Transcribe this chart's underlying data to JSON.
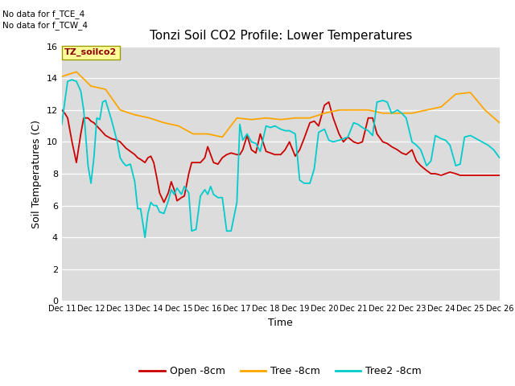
{
  "title": "Tonzi Soil CO2 Profile: Lower Temperatures",
  "ylabel": "Soil Temperatures (C)",
  "xlabel": "Time",
  "top_left_text": "No data for f_TCE_4\nNo data for f_TCW_4",
  "box_label": "TZ_soilco2",
  "ylim": [
    0,
    16
  ],
  "yticks": [
    0,
    2,
    4,
    6,
    8,
    10,
    12,
    14,
    16
  ],
  "xtick_labels": [
    "Dec 11",
    "Dec 12",
    "Dec 13",
    "Dec 14",
    "Dec 15",
    "Dec 16",
    "Dec 17",
    "Dec 18",
    "Dec 19",
    "Dec 20",
    "Dec 21",
    "Dec 22",
    "Dec 23",
    "Dec 24",
    "Dec 25",
    "Dec 26"
  ],
  "bg_color": "#dcdcdc",
  "legend_entries": [
    "Open -8cm",
    "Tree -8cm",
    "Tree2 -8cm"
  ],
  "legend_colors": [
    "#cc0000",
    "#ffa500",
    "#00cccc"
  ],
  "open_8cm_x": [
    0,
    0.1,
    0.2,
    0.35,
    0.5,
    0.65,
    0.75,
    0.9,
    1.0,
    1.1,
    1.2,
    1.3,
    1.4,
    1.5,
    1.7,
    1.9,
    2.0,
    2.1,
    2.2,
    2.35,
    2.5,
    2.6,
    2.7,
    2.85,
    2.95,
    3.05,
    3.15,
    3.25,
    3.35,
    3.5,
    3.65,
    3.75,
    3.85,
    3.95,
    4.1,
    4.2,
    4.35,
    4.45,
    4.6,
    4.75,
    4.9,
    5.0,
    5.1,
    5.2,
    5.35,
    5.5,
    5.65,
    5.8,
    6.0,
    6.1,
    6.2,
    6.35,
    6.5,
    6.65,
    6.8,
    7.0,
    7.15,
    7.3,
    7.5,
    7.65,
    7.8,
    8.0,
    8.15,
    8.3,
    8.5,
    8.65,
    8.8,
    9.0,
    9.15,
    9.3,
    9.5,
    9.65,
    9.8,
    10.0,
    10.15,
    10.3,
    10.5,
    10.65,
    10.8,
    11.0,
    11.15,
    11.3,
    11.5,
    11.65,
    11.8,
    12.0,
    12.15,
    12.3,
    12.5,
    12.65,
    12.8,
    13.0,
    13.15,
    13.3,
    13.5,
    13.65,
    13.8,
    14.0,
    14.2,
    14.4,
    14.6,
    14.8,
    15.0
  ],
  "open_8cm_y": [
    12.0,
    11.8,
    11.5,
    10.0,
    8.7,
    10.5,
    11.5,
    11.5,
    11.3,
    11.2,
    11.0,
    10.8,
    10.6,
    10.4,
    10.2,
    10.1,
    10.0,
    9.8,
    9.6,
    9.4,
    9.2,
    9.0,
    8.9,
    8.7,
    9.0,
    9.1,
    8.7,
    7.8,
    6.8,
    6.2,
    6.8,
    7.5,
    7.0,
    6.3,
    6.5,
    6.6,
    8.0,
    8.7,
    8.7,
    8.7,
    9.0,
    9.7,
    9.2,
    8.7,
    8.6,
    9.0,
    9.2,
    9.3,
    9.2,
    9.2,
    9.5,
    10.4,
    9.5,
    9.3,
    10.5,
    9.4,
    9.3,
    9.2,
    9.2,
    9.5,
    10.0,
    9.1,
    9.5,
    10.2,
    11.2,
    11.3,
    11.0,
    12.3,
    12.5,
    11.5,
    10.5,
    10.0,
    10.3,
    10.0,
    9.9,
    10.0,
    11.5,
    11.5,
    10.5,
    10.0,
    9.9,
    9.7,
    9.5,
    9.3,
    9.2,
    9.5,
    8.8,
    8.5,
    8.2,
    8.0,
    8.0,
    7.9,
    8.0,
    8.1,
    8.0,
    7.9,
    7.9,
    7.9,
    7.9,
    7.9,
    7.9,
    7.9,
    7.9
  ],
  "tree_8cm_x": [
    0,
    0.5,
    1.0,
    1.5,
    2.0,
    2.5,
    3.0,
    3.5,
    4.0,
    4.5,
    5.0,
    5.5,
    6.0,
    6.5,
    7.0,
    7.5,
    8.0,
    8.5,
    9.0,
    9.5,
    10.0,
    10.5,
    11.0,
    11.5,
    12.0,
    12.5,
    13.0,
    13.5,
    14.0,
    14.5,
    15.0
  ],
  "tree_8cm_y": [
    14.1,
    14.4,
    13.5,
    13.3,
    12.0,
    11.7,
    11.5,
    11.2,
    11.0,
    10.5,
    10.5,
    10.3,
    11.5,
    11.4,
    11.5,
    11.4,
    11.5,
    11.5,
    11.8,
    12.0,
    12.0,
    12.0,
    11.8,
    11.8,
    11.8,
    12.0,
    12.2,
    13.0,
    13.1,
    12.0,
    11.2
  ],
  "tree2_8cm_x": [
    0,
    0.1,
    0.2,
    0.35,
    0.5,
    0.65,
    0.75,
    0.9,
    1.0,
    1.1,
    1.2,
    1.3,
    1.4,
    1.5,
    1.7,
    1.9,
    2.0,
    2.1,
    2.2,
    2.35,
    2.5,
    2.6,
    2.7,
    2.85,
    2.95,
    3.05,
    3.15,
    3.25,
    3.35,
    3.5,
    3.65,
    3.75,
    3.85,
    3.95,
    4.1,
    4.2,
    4.35,
    4.45,
    4.6,
    4.75,
    4.9,
    5.0,
    5.1,
    5.2,
    5.35,
    5.5,
    5.65,
    5.8,
    6.0,
    6.1,
    6.2,
    6.35,
    6.5,
    6.65,
    6.8,
    7.0,
    7.15,
    7.3,
    7.5,
    7.65,
    7.8,
    8.0,
    8.15,
    8.3,
    8.5,
    8.65,
    8.8,
    9.0,
    9.15,
    9.3,
    9.5,
    9.65,
    9.8,
    10.0,
    10.15,
    10.3,
    10.5,
    10.65,
    10.8,
    11.0,
    11.15,
    11.3,
    11.5,
    11.65,
    11.8,
    12.0,
    12.15,
    12.3,
    12.5,
    12.65,
    12.8,
    13.0,
    13.15,
    13.3,
    13.5,
    13.65,
    13.8,
    14.0,
    14.2,
    14.4,
    14.6,
    14.8,
    15.0
  ],
  "tree2_8cm_y": [
    11.1,
    12.5,
    13.8,
    13.9,
    13.8,
    13.2,
    12.0,
    8.5,
    7.4,
    9.0,
    11.5,
    11.4,
    12.5,
    12.6,
    11.4,
    10.0,
    9.0,
    8.7,
    8.5,
    8.6,
    7.5,
    5.8,
    5.8,
    4.0,
    5.5,
    6.2,
    6.0,
    6.0,
    5.6,
    5.5,
    6.3,
    7.0,
    6.7,
    7.1,
    6.7,
    7.2,
    6.8,
    4.4,
    4.5,
    6.6,
    7.0,
    6.7,
    7.2,
    6.7,
    6.5,
    6.5,
    4.4,
    4.4,
    6.2,
    11.1,
    10.1,
    10.5,
    10.0,
    9.9,
    9.4,
    11.0,
    10.9,
    11.0,
    10.8,
    10.7,
    10.7,
    10.5,
    7.6,
    7.4,
    7.4,
    8.3,
    10.6,
    10.8,
    10.1,
    10.0,
    10.1,
    10.2,
    10.3,
    11.2,
    11.1,
    10.9,
    10.7,
    10.4,
    12.5,
    12.6,
    12.5,
    11.8,
    12.0,
    11.8,
    11.5,
    10.0,
    9.8,
    9.5,
    8.5,
    8.8,
    10.4,
    10.2,
    10.1,
    9.8,
    8.5,
    8.6,
    10.3,
    10.4,
    10.2,
    10.0,
    9.8,
    9.5,
    9.0
  ]
}
